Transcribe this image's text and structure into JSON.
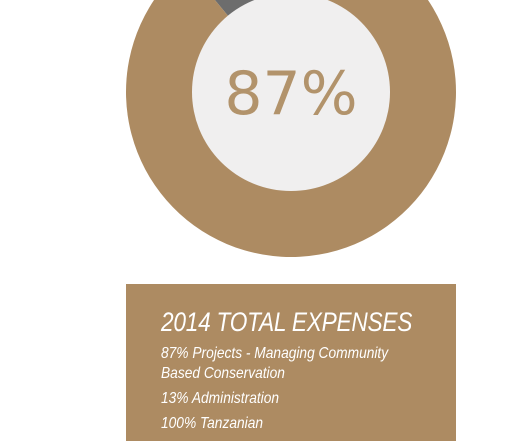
{
  "chart_data": {
    "type": "pie",
    "style": "donut",
    "center_label": "87%",
    "slices": [
      {
        "label": "Projects - Managing Community Based Conservation",
        "value": 87,
        "color": "#ad8b62"
      },
      {
        "label": "Administration",
        "value": 13,
        "color": "#6d6d6d"
      }
    ],
    "hole_color": "#f0efef"
  },
  "legend": {
    "title": "2014 TOTAL EXPENSES",
    "lines": [
      "87% Projects - Managing Community Based Conservation",
      "13% Administration",
      "100% Tanzanian"
    ]
  }
}
